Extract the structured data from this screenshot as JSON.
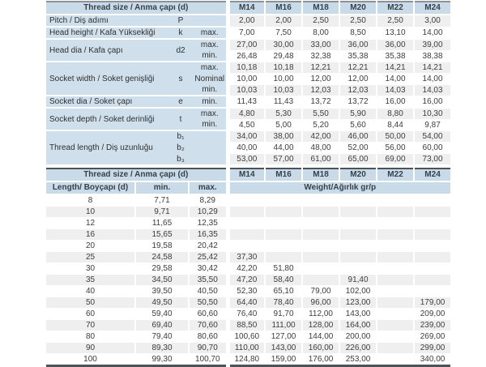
{
  "colors": {
    "header_blue": "#c9dbe9",
    "label_blue": "#cfdfec",
    "row_stripe": "#efefef",
    "rule_dark": "#4d5257",
    "text": "#3b3b3b"
  },
  "columns": [
    "M14",
    "M16",
    "M18",
    "M20",
    "M22",
    "M24"
  ],
  "spec_table": {
    "title": "Thread size / Anma çapı (d)",
    "groups": [
      {
        "label": "Pitch / Diş adımı",
        "symbol": "P",
        "rows": [
          {
            "sub": "",
            "values": [
              "2,00",
              "2,00",
              "2,50",
              "2,50",
              "2,50",
              "3,00"
            ]
          }
        ]
      },
      {
        "label": "Head height / Kafa Yüksekliği",
        "symbol": "k",
        "rows": [
          {
            "sub": "max.",
            "values": [
              "7,00",
              "7,50",
              "8,00",
              "8,50",
              "13,10",
              "14,00"
            ]
          }
        ]
      },
      {
        "label": "Head dia / Kafa çapı",
        "symbol": "d2",
        "rows": [
          {
            "sub": "max.",
            "values": [
              "27,00",
              "30,00",
              "33,00",
              "36,00",
              "36,00",
              "39,00"
            ]
          },
          {
            "sub": "min.",
            "values": [
              "26,48",
              "29,48",
              "32,38",
              "35,38",
              "35,38",
              "38,38"
            ]
          }
        ]
      },
      {
        "label": "Socket width / Soket genişliği",
        "symbol": "s",
        "rows": [
          {
            "sub": "max.",
            "values": [
              "10,18",
              "10,18",
              "12,21",
              "12,21",
              "14,21",
              "14,21"
            ]
          },
          {
            "sub": "Nominal",
            "values": [
              "10,00",
              "10,00",
              "12,00",
              "12,00",
              "14,00",
              "14,00"
            ]
          },
          {
            "sub": "min.",
            "values": [
              "10,03",
              "10,03",
              "12,03",
              "12,03",
              "14,03",
              "14,03"
            ]
          }
        ]
      },
      {
        "label": "Socket dia / Soket çapı",
        "symbol": "e",
        "rows": [
          {
            "sub": "min.",
            "values": [
              "11,43",
              "11,43",
              "13,72",
              "13,72",
              "16,00",
              "16,00"
            ]
          }
        ]
      },
      {
        "label": "Socket depth / Soket derinliği",
        "symbol": "t",
        "rows": [
          {
            "sub": "max.",
            "values": [
              "4,80",
              "5,30",
              "5,50",
              "5,90",
              "8,80",
              "10,30"
            ]
          },
          {
            "sub": "min.",
            "values": [
              "4,50",
              "5,00",
              "5,20",
              "5,60",
              "8,44",
              "9,87"
            ]
          }
        ]
      },
      {
        "label": "Thread length / Diş uzunluğu",
        "rows": [
          {
            "sym": "b₁",
            "sub": "",
            "values": [
              "34,00",
              "38,00",
              "42,00",
              "46,00",
              "50,00",
              "54,00"
            ]
          },
          {
            "sym": "b₂",
            "sub": "",
            "values": [
              "40,00",
              "44,00",
              "48,00",
              "52,00",
              "56,00",
              "60,00"
            ]
          },
          {
            "sym": "b₃",
            "sub": "",
            "values": [
              "53,00",
              "57,00",
              "61,00",
              "65,00",
              "69,00",
              "73,00"
            ]
          }
        ]
      }
    ]
  },
  "weight_table": {
    "title": "Thread size / Anma çapı (d)",
    "col_length": "Length/ Boyçapı (d)",
    "col_min": "min.",
    "col_max": "max.",
    "weight_header": "Weight/Ağırlık gr/p",
    "rows": [
      {
        "length": "8",
        "min": "7,71",
        "max": "8,29",
        "weights": [
          "",
          "",
          "",
          "",
          "",
          ""
        ]
      },
      {
        "length": "10",
        "min": "9,71",
        "max": "10,29",
        "weights": [
          "",
          "",
          "",
          "",
          "",
          ""
        ]
      },
      {
        "length": "12",
        "min": "11,65",
        "max": "12,35",
        "weights": [
          "",
          "",
          "",
          "",
          "",
          ""
        ]
      },
      {
        "length": "16",
        "min": "15,65",
        "max": "16,35",
        "weights": [
          "",
          "",
          "",
          "",
          "",
          ""
        ]
      },
      {
        "length": "20",
        "min": "19,58",
        "max": "20,42",
        "weights": [
          "",
          "",
          "",
          "",
          "",
          ""
        ]
      },
      {
        "length": "25",
        "min": "24,58",
        "max": "25,42",
        "weights": [
          "37,30",
          "",
          "",
          "",
          "",
          ""
        ]
      },
      {
        "length": "30",
        "min": "29,58",
        "max": "30,42",
        "weights": [
          "42,20",
          "51,80",
          "",
          "",
          "",
          ""
        ]
      },
      {
        "length": "35",
        "min": "34,50",
        "max": "35,50",
        "weights": [
          "47,20",
          "58,40",
          "",
          "91,40",
          "",
          ""
        ]
      },
      {
        "length": "40",
        "min": "39,50",
        "max": "40,50",
        "weights": [
          "52,30",
          "65,10",
          "79,00",
          "102,00",
          "",
          ""
        ]
      },
      {
        "length": "50",
        "min": "49,50",
        "max": "50,50",
        "weights": [
          "64,40",
          "78,40",
          "96,00",
          "123,00",
          "",
          "179,00"
        ]
      },
      {
        "length": "60",
        "min": "59,40",
        "max": "60,60",
        "weights": [
          "76,40",
          "91,70",
          "112,00",
          "143,00",
          "",
          "209,00"
        ]
      },
      {
        "length": "70",
        "min": "69,40",
        "max": "70,60",
        "weights": [
          "88,50",
          "111,00",
          "128,00",
          "164,00",
          "",
          "239,00"
        ]
      },
      {
        "length": "80",
        "min": "79,40",
        "max": "80,60",
        "weights": [
          "100,60",
          "127,00",
          "144,00",
          "200,00",
          "",
          "269,00"
        ]
      },
      {
        "length": "90",
        "min": "89,30",
        "max": "90,70",
        "weights": [
          "110,00",
          "143,00",
          "160,00",
          "226,00",
          "",
          "299,00"
        ]
      },
      {
        "length": "100",
        "min": "99,30",
        "max": "100,70",
        "weights": [
          "124,80",
          "159,00",
          "176,00",
          "253,00",
          "",
          "340,00"
        ]
      }
    ]
  }
}
